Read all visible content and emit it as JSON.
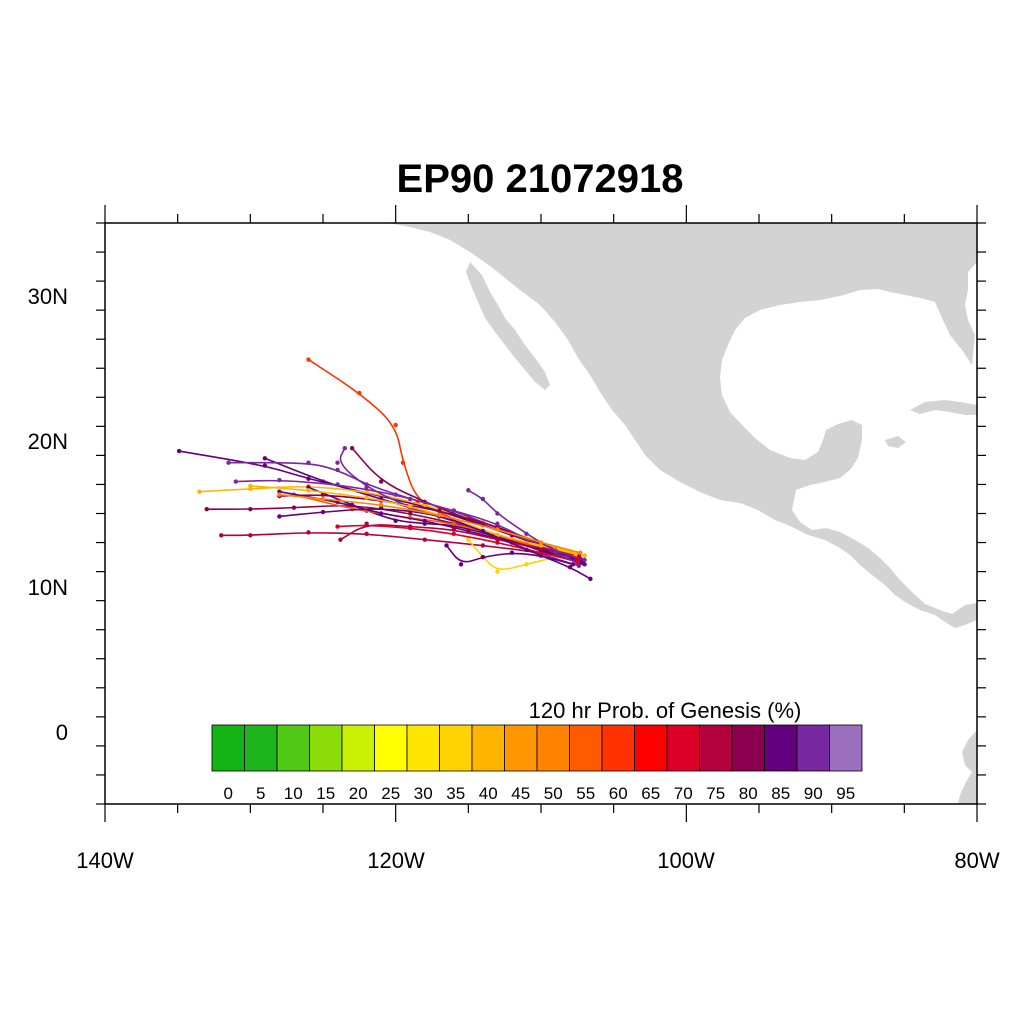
{
  "title": "EP90 21072918",
  "map": {
    "lon_range": [
      -140,
      -80
    ],
    "lat_range": [
      -5,
      35
    ],
    "land_color": "#d3d3d3",
    "ocean_color": "#ffffff",
    "x_tick_labels": [
      "140W",
      "120W",
      "100W",
      "80W"
    ],
    "y_tick_labels": [
      "30N",
      "20N",
      "10N",
      "0"
    ]
  },
  "colorbar": {
    "title": "120 hr Prob. of Genesis (%)",
    "labels": [
      "0",
      "5",
      "10",
      "15",
      "20",
      "25",
      "30",
      "35",
      "40",
      "45",
      "50",
      "55",
      "60",
      "65",
      "70",
      "75",
      "80",
      "85",
      "90",
      "95"
    ],
    "colors": [
      "#14b414",
      "#1eb41e",
      "#50c814",
      "#8cdc0a",
      "#c8f000",
      "#ffff00",
      "#ffe600",
      "#ffd200",
      "#ffb400",
      "#ff9600",
      "#ff8200",
      "#ff5a00",
      "#ff3200",
      "#ff0000",
      "#dc0028",
      "#b4003c",
      "#8c0050",
      "#64007d",
      "#7828a0",
      "#9b6ebe"
    ]
  },
  "chart_data": {
    "type": "track-ensemble",
    "title": "EP90 21072918",
    "genesis_point": {
      "lon": -107.5,
      "lat": 11.8
    },
    "tracks": [
      {
        "color": "#ff3200",
        "points": [
          [
            -107.5,
            12.0
          ],
          [
            -110,
            12.6
          ],
          [
            -113,
            13.4
          ],
          [
            -116,
            14.6
          ],
          [
            -118.5,
            15.8
          ],
          [
            -119.5,
            18.5
          ],
          [
            -120,
            21.1
          ],
          [
            -122.5,
            23.3
          ],
          [
            -126,
            25.6
          ]
        ]
      },
      {
        "color": "#64007d",
        "points": [
          [
            -107.2,
            11.8
          ],
          [
            -110,
            12.8
          ],
          [
            -114,
            14.2
          ],
          [
            -118,
            15.5
          ],
          [
            -122,
            16.4
          ],
          [
            -126,
            17.4
          ],
          [
            -129,
            18.3
          ],
          [
            -134.9,
            19.3
          ]
        ]
      },
      {
        "color": "#64007d",
        "points": [
          [
            -107.3,
            11.6
          ],
          [
            -110,
            12.4
          ],
          [
            -113,
            13.5
          ],
          [
            -117,
            14.8
          ],
          [
            -121,
            16.0
          ],
          [
            -125,
            17.2
          ],
          [
            -129,
            18.8
          ]
        ]
      },
      {
        "color": "#8c0050",
        "points": [
          [
            -107.5,
            11.9
          ],
          [
            -111,
            12.9
          ],
          [
            -115,
            14.1
          ],
          [
            -119,
            15.0
          ],
          [
            -123,
            15.6
          ],
          [
            -127,
            15.4
          ],
          [
            -130,
            15.3
          ],
          [
            -133,
            15.3
          ]
        ]
      },
      {
        "color": "#b4003c",
        "points": [
          [
            -107.2,
            11.7
          ],
          [
            -110,
            12.3
          ],
          [
            -114,
            12.8
          ],
          [
            -118,
            13.2
          ],
          [
            -122,
            13.6
          ],
          [
            -126,
            13.7
          ],
          [
            -130,
            13.5
          ],
          [
            -132,
            13.5
          ]
        ]
      },
      {
        "color": "#ffb400",
        "points": [
          [
            -107.0,
            12.1
          ],
          [
            -110,
            13.0
          ],
          [
            -114,
            14.4
          ],
          [
            -118,
            15.6
          ],
          [
            -122,
            16.5
          ],
          [
            -126,
            16.9
          ],
          [
            -130,
            16.7
          ],
          [
            -133.5,
            16.5
          ]
        ]
      },
      {
        "color": "#ffd200",
        "points": [
          [
            -107.3,
            12.2
          ],
          [
            -109,
            12.0
          ],
          [
            -111,
            11.5
          ],
          [
            -113,
            11.0
          ],
          [
            -114,
            12.0
          ],
          [
            -115,
            13.2
          ]
        ]
      },
      {
        "color": "#7828a0",
        "points": [
          [
            -107.4,
            11.4
          ],
          [
            -110,
            12.2
          ],
          [
            -113,
            13.3
          ],
          [
            -116,
            14.5
          ],
          [
            -119,
            15.4
          ],
          [
            -122,
            16.8
          ],
          [
            -124,
            18.5
          ],
          [
            -123.5,
            19.5
          ]
        ]
      },
      {
        "color": "#8c0050",
        "points": [
          [
            -107.0,
            11.5
          ],
          [
            -109,
            12.5
          ],
          [
            -112,
            13.5
          ],
          [
            -115,
            14.6
          ],
          [
            -118,
            15.8
          ],
          [
            -121,
            17.2
          ],
          [
            -123,
            19.5
          ]
        ]
      },
      {
        "color": "#64007d",
        "points": [
          [
            -107.8,
            11.5
          ],
          [
            -110,
            12.1
          ],
          [
            -112,
            12.3
          ],
          [
            -114,
            12.0
          ],
          [
            -115.5,
            11.5
          ],
          [
            -116.5,
            12.8
          ]
        ]
      },
      {
        "color": "#7828a0",
        "points": [
          [
            -107.3,
            11.9
          ],
          [
            -110,
            12.8
          ],
          [
            -113,
            14.0
          ],
          [
            -116,
            15.2
          ],
          [
            -120,
            16.3
          ],
          [
            -124,
            17.0
          ],
          [
            -128,
            17.3
          ],
          [
            -131,
            17.2
          ]
        ]
      },
      {
        "color": "#dc0028",
        "points": [
          [
            -107.5,
            11.7
          ],
          [
            -110,
            12.3
          ],
          [
            -113,
            13.0
          ],
          [
            -116,
            13.6
          ],
          [
            -119,
            14.0
          ],
          [
            -122,
            14.2
          ],
          [
            -124,
            14.1
          ]
        ]
      },
      {
        "color": "#8c0050",
        "points": [
          [
            -107.4,
            12.0
          ],
          [
            -110,
            12.9
          ],
          [
            -113,
            14.1
          ],
          [
            -117,
            15.2
          ],
          [
            -121,
            15.9
          ],
          [
            -125,
            16.3
          ],
          [
            -128,
            16.2
          ]
        ]
      },
      {
        "color": "#64007d",
        "points": [
          [
            -107.1,
            11.6
          ],
          [
            -110,
            12.5
          ],
          [
            -113,
            13.4
          ],
          [
            -116,
            14.2
          ],
          [
            -118,
            14.3
          ],
          [
            -120,
            14.5
          ],
          [
            -122,
            15.2
          ],
          [
            -126,
            16.8
          ]
        ]
      },
      {
        "color": "#ff5a00",
        "points": [
          [
            -107.6,
            12.1
          ],
          [
            -110,
            12.6
          ],
          [
            -113,
            13.5
          ],
          [
            -116,
            14.3
          ],
          [
            -119,
            14.7
          ],
          [
            -123,
            15.3
          ],
          [
            -127,
            16.3
          ]
        ]
      },
      {
        "color": "#64007d",
        "points": [
          [
            -107.2,
            11.8
          ],
          [
            -109,
            12.3
          ],
          [
            -112,
            13.0
          ],
          [
            -115,
            13.8
          ],
          [
            -118,
            14.5
          ],
          [
            -121,
            15.0
          ],
          [
            -124,
            15.8
          ],
          [
            -128,
            16.5
          ]
        ]
      },
      {
        "color": "#7828a0",
        "points": [
          [
            -107.5,
            11.6
          ],
          [
            -110,
            12.7
          ],
          [
            -113,
            14.3
          ],
          [
            -116,
            15.2
          ],
          [
            -119,
            16.0
          ],
          [
            -122,
            17.0
          ],
          [
            -124,
            18.0
          ],
          [
            -126,
            18.5
          ],
          [
            -131.5,
            18.5
          ]
        ]
      },
      {
        "color": "#b4003c",
        "points": [
          [
            -107.4,
            12.1
          ],
          [
            -110,
            12.6
          ],
          [
            -113,
            13.2
          ],
          [
            -116,
            13.9
          ],
          [
            -119,
            14.1
          ],
          [
            -122,
            14.3
          ],
          [
            -123.8,
            13.2
          ]
        ]
      },
      {
        "color": "#ffb400",
        "points": [
          [
            -107.6,
            12.2
          ],
          [
            -110,
            12.8
          ],
          [
            -113,
            13.5
          ],
          [
            -116,
            14.6
          ],
          [
            -119,
            15.5
          ],
          [
            -122,
            16.1
          ],
          [
            -126,
            16.6
          ],
          [
            -130,
            16.9
          ]
        ]
      },
      {
        "color": "#7828a0",
        "points": [
          [
            -107.0,
            11.8
          ],
          [
            -109,
            12.4
          ],
          [
            -111,
            13.6
          ],
          [
            -113,
            15.0
          ],
          [
            -114,
            16.0
          ],
          [
            -115,
            16.6
          ]
        ]
      },
      {
        "color": "#64007d",
        "points": [
          [
            -106.6,
            10.5
          ],
          [
            -108,
            11.3
          ],
          [
            -111,
            12.5
          ],
          [
            -114,
            13.8
          ],
          [
            -117,
            14.9
          ],
          [
            -121,
            15.4
          ],
          [
            -125,
            15.1
          ],
          [
            -128,
            14.8
          ]
        ]
      },
      {
        "color": "#ff8200",
        "points": [
          [
            -107.3,
            12.3
          ],
          [
            -110,
            13.0
          ],
          [
            -113,
            13.9
          ],
          [
            -117,
            14.9
          ],
          [
            -121,
            15.6
          ],
          [
            -125,
            16.0
          ],
          [
            -128,
            16.3
          ]
        ]
      }
    ]
  }
}
